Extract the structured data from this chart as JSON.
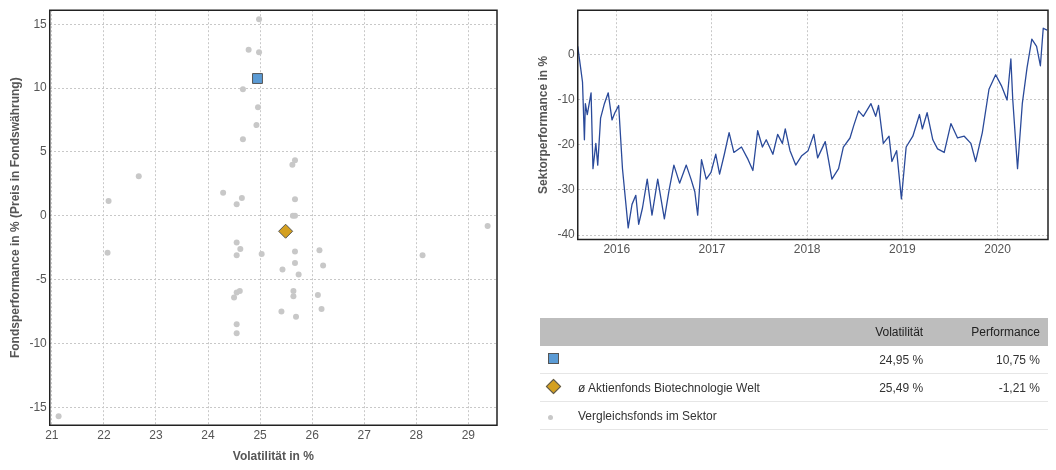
{
  "chart_data": [
    {
      "type": "scatter",
      "xlabel": "Volatilität in %",
      "ylabel": "Fondsperformance in % (Preis in Fondswährung)",
      "xlim": [
        20.96,
        29.55
      ],
      "xticks": [
        21,
        22,
        23,
        24,
        25,
        26,
        27,
        28,
        29
      ],
      "ylim": [
        -16.4,
        16.1
      ],
      "yticks": [
        -15,
        -10,
        -5,
        0,
        5,
        10,
        15
      ],
      "grid": true,
      "legend": "bottom right",
      "annotations": [
        "Volatilität",
        "Performance",
        "24,95 %",
        "10,75 %",
        "25,49 %",
        "-1,21 %"
      ],
      "series": [
        {
          "color": "#5b9bd5",
          "marker": "square",
          "x": [
            24.95
          ],
          "values": [
            10.75
          ]
        },
        {
          "name": "ø Aktienfonds Biotechnologie Welt",
          "color": "#d4a020",
          "marker": "diamond",
          "x": [
            25.49
          ],
          "values": [
            -1.21
          ]
        },
        {
          "name": "Vergleichsfonds im Sektor",
          "color": "#c8c8c8",
          "marker": "circle",
          "x": [
            24.98,
            24.78,
            24.98,
            24.67,
            24.96,
            24.93,
            24.67,
            25.67,
            25.62,
            22.67,
            22.09,
            24.29,
            24.65,
            24.55,
            25.67,
            25.63,
            25.67,
            29.37,
            24.55,
            24.62,
            24.55,
            25.03,
            22.07,
            25.67,
            26.14,
            25.67,
            26.21,
            25.43,
            25.74,
            28.12,
            24.61,
            24.55,
            24.5,
            25.64,
            25.64,
            26.11,
            26.18,
            25.41,
            25.69,
            24.55,
            24.55,
            21.13
          ],
          "values": [
            15.4,
            13.0,
            12.8,
            9.9,
            8.5,
            7.1,
            6.0,
            4.35,
            4.0,
            3.1,
            1.15,
            1.8,
            1.4,
            0.9,
            1.3,
            0.0,
            0.0,
            -0.8,
            -2.1,
            -2.6,
            -3.1,
            -3.0,
            -2.9,
            -2.8,
            -2.7,
            -3.7,
            -3.9,
            -4.2,
            -4.6,
            -3.1,
            -5.9,
            -6.0,
            -6.4,
            -5.9,
            -6.3,
            -6.2,
            -7.3,
            -7.5,
            -7.9,
            -8.5,
            -9.2,
            -15.7
          ]
        }
      ]
    },
    {
      "type": "line",
      "ylabel": "Sektorperformance in %",
      "xlim": [
        2015.59,
        2020.53
      ],
      "xticks": [
        2016,
        2017,
        2018,
        2019,
        2020
      ],
      "ylim": [
        -41,
        9.8
      ],
      "yticks": [
        -40,
        -30,
        -20,
        -10,
        0
      ],
      "grid": true,
      "marker": "none",
      "line_style": "solid",
      "series": [
        {
          "color": "#2a4a9a",
          "x": [
            2015.59,
            2015.62,
            2015.64,
            2015.66,
            2015.67,
            2015.69,
            2015.73,
            2015.75,
            2015.78,
            2015.8,
            2015.83,
            2015.87,
            2015.91,
            2015.95,
            2015.98,
            2016.02,
            2016.06,
            2016.12,
            2016.16,
            2016.2,
            2016.23,
            2016.27,
            2016.32,
            2016.37,
            2016.43,
            2016.5,
            2016.55,
            2016.6,
            2016.66,
            2016.73,
            2016.78,
            2016.82,
            2016.85,
            2016.89,
            2016.94,
            2016.99,
            2017.04,
            2017.08,
            2017.13,
            2017.18,
            2017.23,
            2017.31,
            2017.38,
            2017.43,
            2017.48,
            2017.53,
            2017.57,
            2017.64,
            2017.69,
            2017.74,
            2017.77,
            2017.82,
            2017.88,
            2017.94,
            2018.01,
            2018.07,
            2018.11,
            2018.19,
            2018.26,
            2018.33,
            2018.38,
            2018.45,
            2018.49,
            2018.54,
            2018.59,
            2018.67,
            2018.72,
            2018.75,
            2018.8,
            2018.86,
            2018.89,
            2018.94,
            2018.99,
            2019.04,
            2019.11,
            2019.18,
            2019.21,
            2019.26,
            2019.32,
            2019.37,
            2019.44,
            2019.51,
            2019.58,
            2019.65,
            2019.72,
            2019.77,
            2019.84,
            2019.91,
            2019.98,
            2020.04,
            2020.1,
            2020.14,
            2020.16,
            2020.21,
            2020.26,
            2020.31,
            2020.36,
            2020.41,
            2020.45,
            2020.48,
            2020.52
          ],
          "values": [
            1.8,
            -2.9,
            -6.1,
            -18.9,
            -10.9,
            -13.3,
            -8.5,
            -25.3,
            -19.7,
            -24.5,
            -14.1,
            -10.9,
            -8.5,
            -14.5,
            -12.9,
            -11.3,
            -25.3,
            -38.4,
            -33.2,
            -31.2,
            -37.6,
            -34.0,
            -27.6,
            -35.6,
            -27.6,
            -36.4,
            -30.0,
            -24.5,
            -28.5,
            -24.5,
            -27.6,
            -30.4,
            -35.6,
            -23.3,
            -27.6,
            -26.1,
            -22.1,
            -26.5,
            -22.1,
            -17.3,
            -21.7,
            -20.5,
            -23.3,
            -25.7,
            -16.9,
            -20.5,
            -18.9,
            -22.1,
            -17.7,
            -19.7,
            -16.5,
            -21.3,
            -24.5,
            -22.5,
            -21.3,
            -17.7,
            -22.9,
            -19.3,
            -27.6,
            -25.3,
            -20.5,
            -18.5,
            -15.7,
            -12.5,
            -13.7,
            -10.9,
            -13.7,
            -11.3,
            -19.7,
            -18.1,
            -23.7,
            -21.3,
            -32.0,
            -20.5,
            -18.1,
            -13.3,
            -16.5,
            -12.9,
            -18.9,
            -20.9,
            -21.7,
            -15.3,
            -18.5,
            -18.1,
            -19.7,
            -23.7,
            -17.3,
            -7.7,
            -4.5,
            -6.9,
            -10.1,
            -1.0,
            -10.1,
            -25.3,
            -10.9,
            -2.9,
            3.4,
            1.8,
            -2.5,
            5.8,
            5.4
          ]
        }
      ]
    }
  ]
}
